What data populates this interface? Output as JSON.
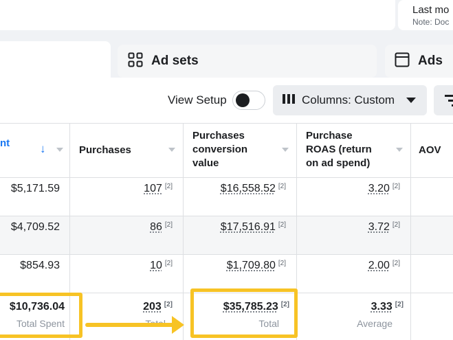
{
  "header": {
    "last_modified_title": "Last mo",
    "last_modified_note": "Note: Doc"
  },
  "tabs": [
    {
      "label": "",
      "icon": "campaigns-icon"
    },
    {
      "label": "Ad sets",
      "icon": "grid-icon"
    },
    {
      "label": "Ads",
      "icon": "ad-window-icon"
    }
  ],
  "toolbar": {
    "view_setup_label": "View Setup",
    "view_setup_on": false,
    "columns_label": "Columns: Custom",
    "columns_icon": "columns-icon",
    "breakdown_icon": "breakdown-icon"
  },
  "table": {
    "columns": {
      "spent": "nt",
      "purchases": "Purchases",
      "conv_value": [
        "Purchases",
        "conversion",
        "value"
      ],
      "roas": [
        "Purchase",
        "ROAS (return",
        "on ad spend)"
      ],
      "aov": "AOV"
    },
    "rows": [
      {
        "spent": "$5,171.59",
        "purchases": "107",
        "conv_value": "$16,558.52",
        "roas": "3.20"
      },
      {
        "spent": "$4,709.52",
        "purchases": "86",
        "conv_value": "$17,516.91",
        "roas": "3.72"
      },
      {
        "spent": "$854.93",
        "purchases": "10",
        "conv_value": "$1,709.80",
        "roas": "2.00"
      }
    ],
    "footnote": "[2]",
    "totals": {
      "spent": "$10,736.04",
      "spent_label": "Total Spent",
      "purchases": "203",
      "purchases_label": "Total",
      "conv_value": "$35,785.23",
      "conv_value_label": "Total",
      "roas": "3.33",
      "roas_label": "Average"
    }
  },
  "colors": {
    "accent": "#1877f2",
    "highlight": "#f7c325"
  }
}
